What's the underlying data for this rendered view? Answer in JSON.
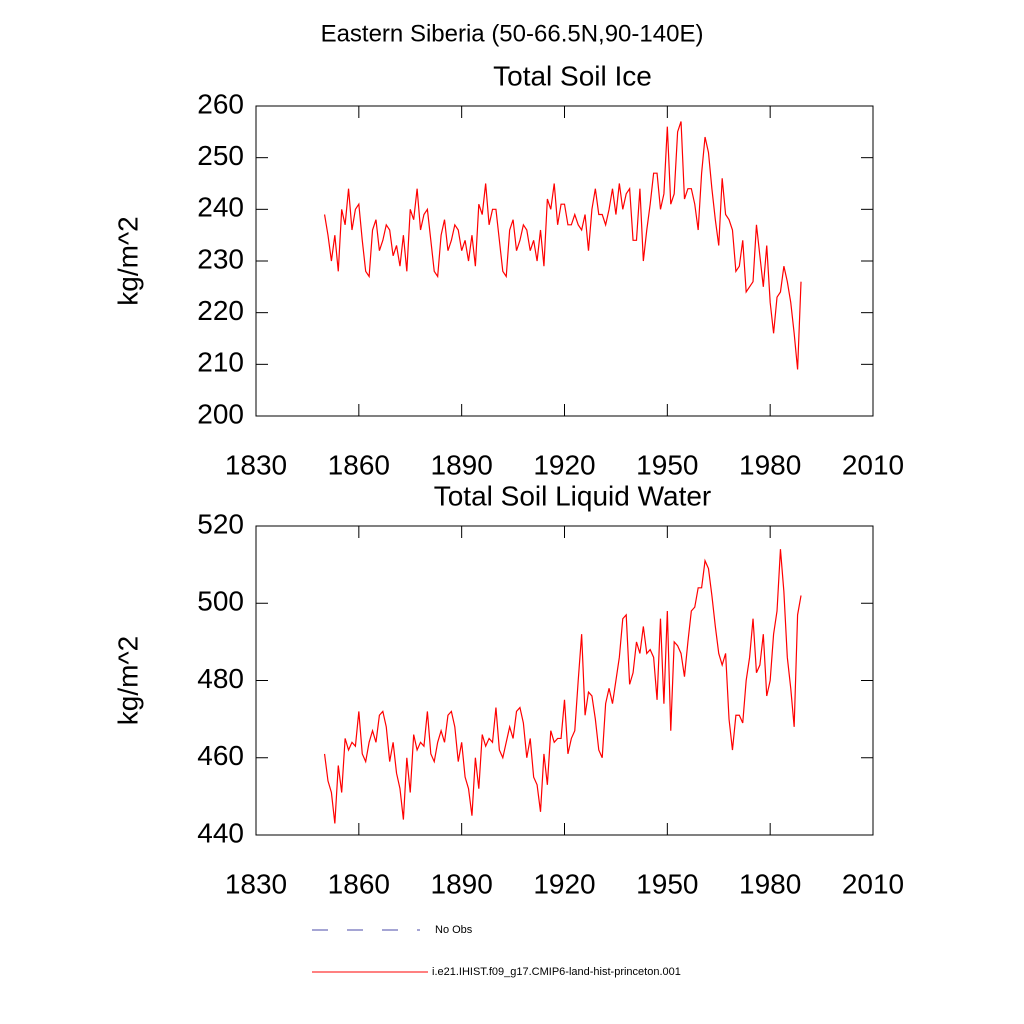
{
  "title": "Eastern Siberia (50-66.5N,90-140E)",
  "legend": [
    {
      "label": "No Obs",
      "color": "#4b4ba8",
      "dashed": true
    }
  ],
  "chart_data": [
    {
      "type": "line",
      "title": "Total Soil Ice",
      "ylabel": "kg/m^2",
      "x": [
        1850,
        1851,
        1852,
        1853,
        1854,
        1855,
        1856,
        1857,
        1858,
        1859,
        1860,
        1861,
        1862,
        1863,
        1864,
        1865,
        1866,
        1867,
        1868,
        1869,
        1870,
        1871,
        1872,
        1873,
        1874,
        1875,
        1876,
        1877,
        1878,
        1879,
        1880,
        1881,
        1882,
        1883,
        1884,
        1885,
        1886,
        1887,
        1888,
        1889,
        1890,
        1891,
        1892,
        1893,
        1894,
        1895,
        1896,
        1897,
        1898,
        1899,
        1900,
        1901,
        1902,
        1903,
        1904,
        1905,
        1906,
        1907,
        1908,
        1909,
        1910,
        1911,
        1912,
        1913,
        1914,
        1915,
        1916,
        1917,
        1918,
        1919,
        1920,
        1921,
        1922,
        1923,
        1924,
        1925,
        1926,
        1927,
        1928,
        1929,
        1930,
        1931,
        1932,
        1933,
        1934,
        1935,
        1936,
        1937,
        1938,
        1939,
        1940,
        1941,
        1942,
        1943,
        1944,
        1945,
        1946,
        1947,
        1948,
        1949,
        1950,
        1951,
        1952,
        1953,
        1954,
        1955,
        1956,
        1957,
        1958,
        1959,
        1960,
        1961,
        1962,
        1963,
        1964,
        1965,
        1966,
        1967,
        1968,
        1969,
        1970,
        1971,
        1972,
        1973,
        1974,
        1975,
        1976,
        1977,
        1978,
        1979,
        1980,
        1981,
        1982,
        1983,
        1984,
        1985,
        1986,
        1987,
        1988,
        1989
      ],
      "series": [
        {
          "name": "i.e21.IHIST.f09_g17.CMIP6-land-hist-princeton.001",
          "color": "#ff0000",
          "values": [
            239,
            235,
            230,
            235,
            228,
            240,
            237,
            244,
            236,
            240,
            241,
            234,
            228,
            227,
            236,
            238,
            232,
            234,
            237,
            236,
            231,
            233,
            229,
            235,
            228,
            240,
            238,
            244,
            236,
            239,
            240,
            234,
            228,
            227,
            235,
            238,
            232,
            234,
            237,
            236,
            232,
            234,
            230,
            235,
            229,
            241,
            239,
            245,
            237,
            240,
            240,
            234,
            228,
            227,
            236,
            238,
            232,
            234,
            237,
            236,
            232,
            234,
            230,
            236,
            229,
            242,
            240,
            245,
            237,
            241,
            241,
            237,
            237,
            239,
            237,
            236,
            239,
            232,
            240,
            244,
            239,
            239,
            237,
            240,
            244,
            239,
            245,
            240,
            243,
            244,
            234,
            234,
            244,
            230,
            236,
            241,
            247,
            247,
            240,
            243,
            256,
            241,
            243,
            255,
            257,
            242,
            244,
            244,
            241,
            236,
            247,
            254,
            251,
            244,
            238,
            233,
            246,
            239,
            238,
            236,
            228,
            229,
            234,
            224,
            225,
            226,
            237,
            231,
            225,
            233,
            222,
            216,
            223,
            224,
            229,
            226,
            222,
            216,
            209,
            226
          ]
        }
      ],
      "xlim": [
        1830,
        2010
      ],
      "xticks": [
        1830,
        1860,
        1890,
        1920,
        1950,
        1980,
        2010
      ],
      "ylim": [
        200,
        260
      ],
      "yticks": [
        200,
        210,
        220,
        230,
        240,
        250,
        260
      ]
    },
    {
      "type": "line",
      "title": "Total Soil Liquid Water",
      "ylabel": "kg/m^2",
      "x": [
        1850,
        1851,
        1852,
        1853,
        1854,
        1855,
        1856,
        1857,
        1858,
        1859,
        1860,
        1861,
        1862,
        1863,
        1864,
        1865,
        1866,
        1867,
        1868,
        1869,
        1870,
        1871,
        1872,
        1873,
        1874,
        1875,
        1876,
        1877,
        1878,
        1879,
        1880,
        1881,
        1882,
        1883,
        1884,
        1885,
        1886,
        1887,
        1888,
        1889,
        1890,
        1891,
        1892,
        1893,
        1894,
        1895,
        1896,
        1897,
        1898,
        1899,
        1900,
        1901,
        1902,
        1903,
        1904,
        1905,
        1906,
        1907,
        1908,
        1909,
        1910,
        1911,
        1912,
        1913,
        1914,
        1915,
        1916,
        1917,
        1918,
        1919,
        1920,
        1921,
        1922,
        1923,
        1924,
        1925,
        1926,
        1927,
        1928,
        1929,
        1930,
        1931,
        1932,
        1933,
        1934,
        1935,
        1936,
        1937,
        1938,
        1939,
        1940,
        1941,
        1942,
        1943,
        1944,
        1945,
        1946,
        1947,
        1948,
        1949,
        1950,
        1951,
        1952,
        1953,
        1954,
        1955,
        1956,
        1957,
        1958,
        1959,
        1960,
        1961,
        1962,
        1963,
        1964,
        1965,
        1966,
        1967,
        1968,
        1969,
        1970,
        1971,
        1972,
        1973,
        1974,
        1975,
        1976,
        1977,
        1978,
        1979,
        1980,
        1981,
        1982,
        1983,
        1984,
        1985,
        1986,
        1987,
        1988,
        1989
      ],
      "series": [
        {
          "color": "#ff0000",
          "values": [
            461,
            454,
            451,
            443,
            458,
            451,
            465,
            462,
            464,
            463,
            472,
            461,
            459,
            464,
            467,
            464,
            471,
            472,
            468,
            459,
            464,
            456,
            452,
            444,
            460,
            451,
            466,
            462,
            464,
            463,
            472,
            461,
            459,
            464,
            467,
            464,
            471,
            472,
            468,
            459,
            464,
            455,
            452,
            445,
            460,
            452,
            466,
            463,
            465,
            464,
            473,
            462,
            460,
            464,
            468,
            465,
            472,
            473,
            469,
            460,
            465,
            455,
            453,
            446,
            461,
            453,
            467,
            464,
            465,
            465,
            475,
            461,
            465,
            467,
            480,
            492,
            471,
            477,
            476,
            470,
            462,
            460,
            474,
            478,
            474,
            480,
            486,
            496,
            497,
            479,
            482,
            490,
            487,
            494,
            487,
            488,
            486,
            475,
            496,
            474,
            498,
            467,
            490,
            489,
            487,
            481,
            490,
            498,
            499,
            504,
            504,
            511,
            509,
            502,
            494,
            487,
            484,
            487,
            470,
            462,
            471,
            471,
            469,
            480,
            486,
            496,
            482,
            484,
            492,
            476,
            480,
            492,
            498,
            514,
            503,
            486,
            478,
            468,
            497,
            502
          ]
        }
      ],
      "xlim": [
        1830,
        2010
      ],
      "xticks": [
        1830,
        1860,
        1890,
        1920,
        1950,
        1980,
        2010
      ],
      "ylim": [
        440,
        520
      ],
      "yticks": [
        440,
        460,
        480,
        500,
        520
      ]
    }
  ]
}
